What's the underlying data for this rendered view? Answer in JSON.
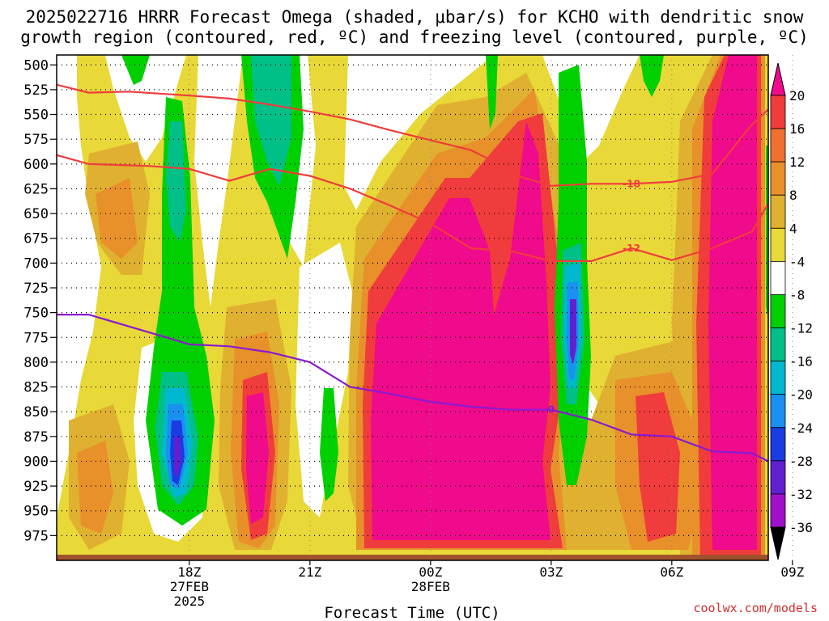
{
  "title_line1": "2025022716 HRRR Forecast Omega (shaded, μbar/s) for KCHO with dendritic snow",
  "title_line2": "growth region (contoured, red, ºC) and freezing level (contoured, purple, ºC)",
  "credit": "coolwx.com/models",
  "chart_data": {
    "type": "heatmap",
    "title": "2025022716 HRRR Forecast Omega (shaded, μbar/s) for KCHO with dendritic snow growth region (contoured, red, ºC) and freezing level (contoured, purple, ºC)",
    "xlabel": "Forecast Time (UTC)",
    "ylabel": "",
    "x_range_hours_from_18Z_27FEB": [
      -3.3,
      14.4
    ],
    "y_range_hPa": [
      1000,
      490
    ],
    "y_ticks": [
      "500",
      "525",
      "550",
      "575",
      "600",
      "625",
      "650",
      "675",
      "700",
      "725",
      "750",
      "775",
      "800",
      "825",
      "850",
      "875",
      "900",
      "925",
      "950",
      "975"
    ],
    "x_ticks": [
      {
        "label": "18Z",
        "date": "27FEB",
        "year": "2025"
      },
      {
        "label": "21Z",
        "date": "",
        "year": ""
      },
      {
        "label": "00Z",
        "date": "28FEB",
        "year": ""
      },
      {
        "label": "03Z",
        "date": "",
        "year": ""
      },
      {
        "label": "06Z",
        "date": "",
        "year": ""
      },
      {
        "label": "09Z",
        "date": "",
        "year": ""
      }
    ],
    "colorbar": {
      "levels": [
        "20",
        "16",
        "12",
        "8",
        "4",
        "-4",
        "-8",
        "-12",
        "-16",
        "-20",
        "-24",
        "-28",
        "-32",
        "-36"
      ],
      "colors": [
        "#f00a8c",
        "#f03c3c",
        "#f07030",
        "#e8902a",
        "#e0b030",
        "#e8d838",
        "#ffffff",
        "#00d000",
        "#00c088",
        "#00b8d0",
        "#1a90f0",
        "#1a3ce0",
        "#6020d0",
        "#a010c8",
        "#a8a8a8",
        "#000000"
      ]
    },
    "red_contours": [
      {
        "label": "-18",
        "points": [
          [
            -3.3,
            520
          ],
          [
            -2.5,
            528
          ],
          [
            -1.5,
            527
          ],
          [
            0,
            531
          ],
          [
            1,
            534
          ],
          [
            2,
            540
          ],
          [
            3,
            547
          ],
          [
            4,
            555
          ],
          [
            5,
            566
          ],
          [
            6,
            576
          ],
          [
            7,
            586
          ],
          [
            7.5,
            596
          ],
          [
            8,
            610
          ],
          [
            9,
            622
          ],
          [
            10,
            620
          ],
          [
            11,
            620
          ],
          [
            12,
            618
          ],
          [
            13,
            610
          ],
          [
            14,
            560
          ],
          [
            14.4,
            545
          ]
        ]
      },
      {
        "label": "-12",
        "points": [
          [
            -3.3,
            591
          ],
          [
            -2.5,
            600
          ],
          [
            -1,
            602
          ],
          [
            0,
            605
          ],
          [
            1,
            617
          ],
          [
            2,
            605
          ],
          [
            3,
            612
          ],
          [
            4,
            625
          ],
          [
            5,
            642
          ],
          [
            6,
            660
          ],
          [
            7,
            685
          ],
          [
            8,
            688
          ],
          [
            9,
            698
          ],
          [
            10,
            698
          ],
          [
            11,
            685
          ],
          [
            12,
            697
          ],
          [
            13,
            685
          ],
          [
            14,
            668
          ],
          [
            14.4,
            640
          ]
        ]
      }
    ],
    "purple_contours": [
      {
        "label": "0",
        "points": [
          [
            -3.3,
            752
          ],
          [
            -2.5,
            752
          ],
          [
            -1,
            770
          ],
          [
            0,
            782
          ],
          [
            1,
            784
          ],
          [
            2,
            790
          ],
          [
            3,
            800
          ],
          [
            4,
            825
          ],
          [
            5,
            832
          ],
          [
            6,
            840
          ],
          [
            7,
            845
          ],
          [
            8,
            848
          ],
          [
            9,
            848
          ],
          [
            10,
            858
          ],
          [
            11,
            873
          ],
          [
            12,
            875
          ],
          [
            13,
            890
          ],
          [
            14,
            892
          ],
          [
            14.4,
            900
          ]
        ]
      }
    ]
  }
}
